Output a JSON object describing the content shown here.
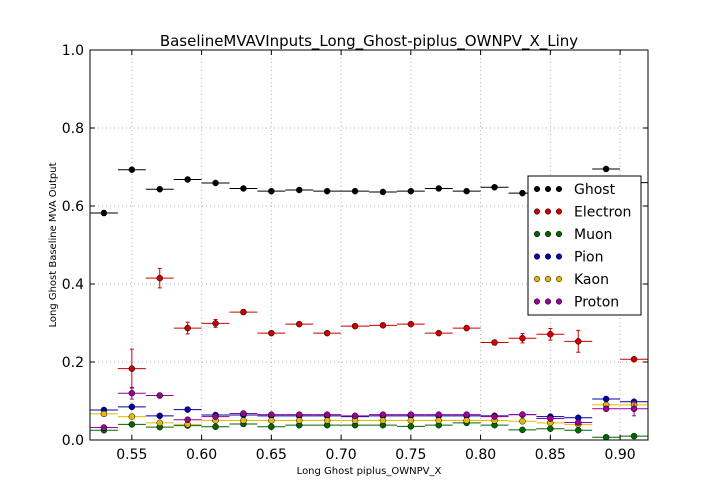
{
  "chart_data": {
    "type": "scatter",
    "title": "BaselineMVAVInputs_Long_Ghost-piplus_OWNPV_X_Liny",
    "xlabel": "Long Ghost piplus_OWNPV_X",
    "ylabel": "Long Ghost Baseline MVA Output",
    "xlim": [
      0.52,
      0.92
    ],
    "ylim": [
      0.0,
      1.0
    ],
    "grid": true,
    "legend_position": "right",
    "bin_width": 0.02,
    "x_ticks": [
      "0.55",
      "0.60",
      "0.65",
      "0.70",
      "0.75",
      "0.80",
      "0.85",
      "0.90"
    ],
    "y_ticks": [
      "0.0",
      "0.2",
      "0.4",
      "0.6",
      "0.8",
      "1.0"
    ],
    "x": [
      0.53,
      0.55,
      0.57,
      0.59,
      0.61,
      0.63,
      0.65,
      0.67,
      0.69,
      0.71,
      0.73,
      0.75,
      0.77,
      0.79,
      0.81,
      0.83,
      0.85,
      0.87,
      0.89,
      0.91
    ],
    "series": [
      {
        "name": "Ghost",
        "color": "#000000",
        "values": [
          0.582,
          0.693,
          0.643,
          0.668,
          0.659,
          0.645,
          0.638,
          0.641,
          0.638,
          0.638,
          0.636,
          0.638,
          0.645,
          0.638,
          0.648,
          0.633,
          0.635,
          0.65,
          0.695,
          0.66
        ],
        "errors": [
          0.006,
          0.004,
          0.004,
          0.003,
          0.003,
          0.003,
          0.003,
          0.003,
          0.003,
          0.003,
          0.003,
          0.003,
          0.003,
          0.003,
          0.003,
          0.003,
          0.004,
          0.004,
          0.004,
          0.005
        ]
      },
      {
        "name": "Electron",
        "color": "#cc0000",
        "values": [
          null,
          0.183,
          0.415,
          0.287,
          0.299,
          0.328,
          0.274,
          0.297,
          0.274,
          0.292,
          0.294,
          0.297,
          0.274,
          0.287,
          0.25,
          0.261,
          0.271,
          0.253,
          null,
          0.207
        ],
        "errors": [
          null,
          0.05,
          0.025,
          0.015,
          0.01,
          0.006,
          0.005,
          0.005,
          0.005,
          0.005,
          0.005,
          0.005,
          0.005,
          0.005,
          0.006,
          0.012,
          0.015,
          0.028,
          null,
          0.004
        ]
      },
      {
        "name": "Muon",
        "color": "#006600",
        "values": [
          0.025,
          0.04,
          0.033,
          0.037,
          0.034,
          0.041,
          0.034,
          0.038,
          0.038,
          0.038,
          0.038,
          0.035,
          0.038,
          0.044,
          0.038,
          0.026,
          0.029,
          0.025,
          0.007,
          0.01
        ],
        "errors": [
          0.003,
          0.003,
          0.003,
          0.003,
          0.003,
          0.003,
          0.003,
          0.003,
          0.003,
          0.003,
          0.003,
          0.003,
          0.003,
          0.003,
          0.003,
          0.003,
          0.003,
          0.003,
          0.003,
          0.003
        ]
      },
      {
        "name": "Pion",
        "color": "#0000aa",
        "values": [
          0.077,
          0.085,
          0.062,
          0.078,
          0.064,
          0.064,
          0.062,
          0.062,
          0.062,
          0.06,
          0.062,
          0.062,
          0.062,
          0.062,
          0.062,
          0.065,
          0.06,
          0.057,
          0.105,
          0.098
        ],
        "errors": [
          0.003,
          0.003,
          0.003,
          0.003,
          0.003,
          0.003,
          0.003,
          0.003,
          0.003,
          0.003,
          0.003,
          0.003,
          0.003,
          0.003,
          0.003,
          0.003,
          0.003,
          0.003,
          0.003,
          0.003
        ]
      },
      {
        "name": "Kaon",
        "color": "#e6b800",
        "values": [
          0.067,
          0.06,
          0.044,
          0.04,
          0.05,
          0.05,
          0.05,
          0.05,
          0.05,
          0.05,
          0.05,
          0.05,
          0.05,
          0.05,
          0.05,
          0.048,
          0.044,
          0.04,
          0.09,
          0.09
        ],
        "errors": [
          0.004,
          0.004,
          0.004,
          0.004,
          0.004,
          0.004,
          0.004,
          0.004,
          0.004,
          0.004,
          0.004,
          0.004,
          0.004,
          0.004,
          0.004,
          0.004,
          0.004,
          0.004,
          0.004,
          0.004
        ]
      },
      {
        "name": "Proton",
        "color": "#990099",
        "values": [
          0.032,
          0.12,
          0.114,
          0.052,
          0.06,
          0.068,
          0.065,
          0.065,
          0.065,
          0.062,
          0.065,
          0.065,
          0.065,
          0.065,
          0.06,
          0.065,
          0.055,
          0.045,
          0.08,
          0.08
        ],
        "errors": [
          0.004,
          0.015,
          0.006,
          0.004,
          0.004,
          0.004,
          0.004,
          0.004,
          0.004,
          0.004,
          0.004,
          0.004,
          0.004,
          0.004,
          0.004,
          0.004,
          0.004,
          0.004,
          0.004,
          0.018
        ]
      }
    ]
  }
}
